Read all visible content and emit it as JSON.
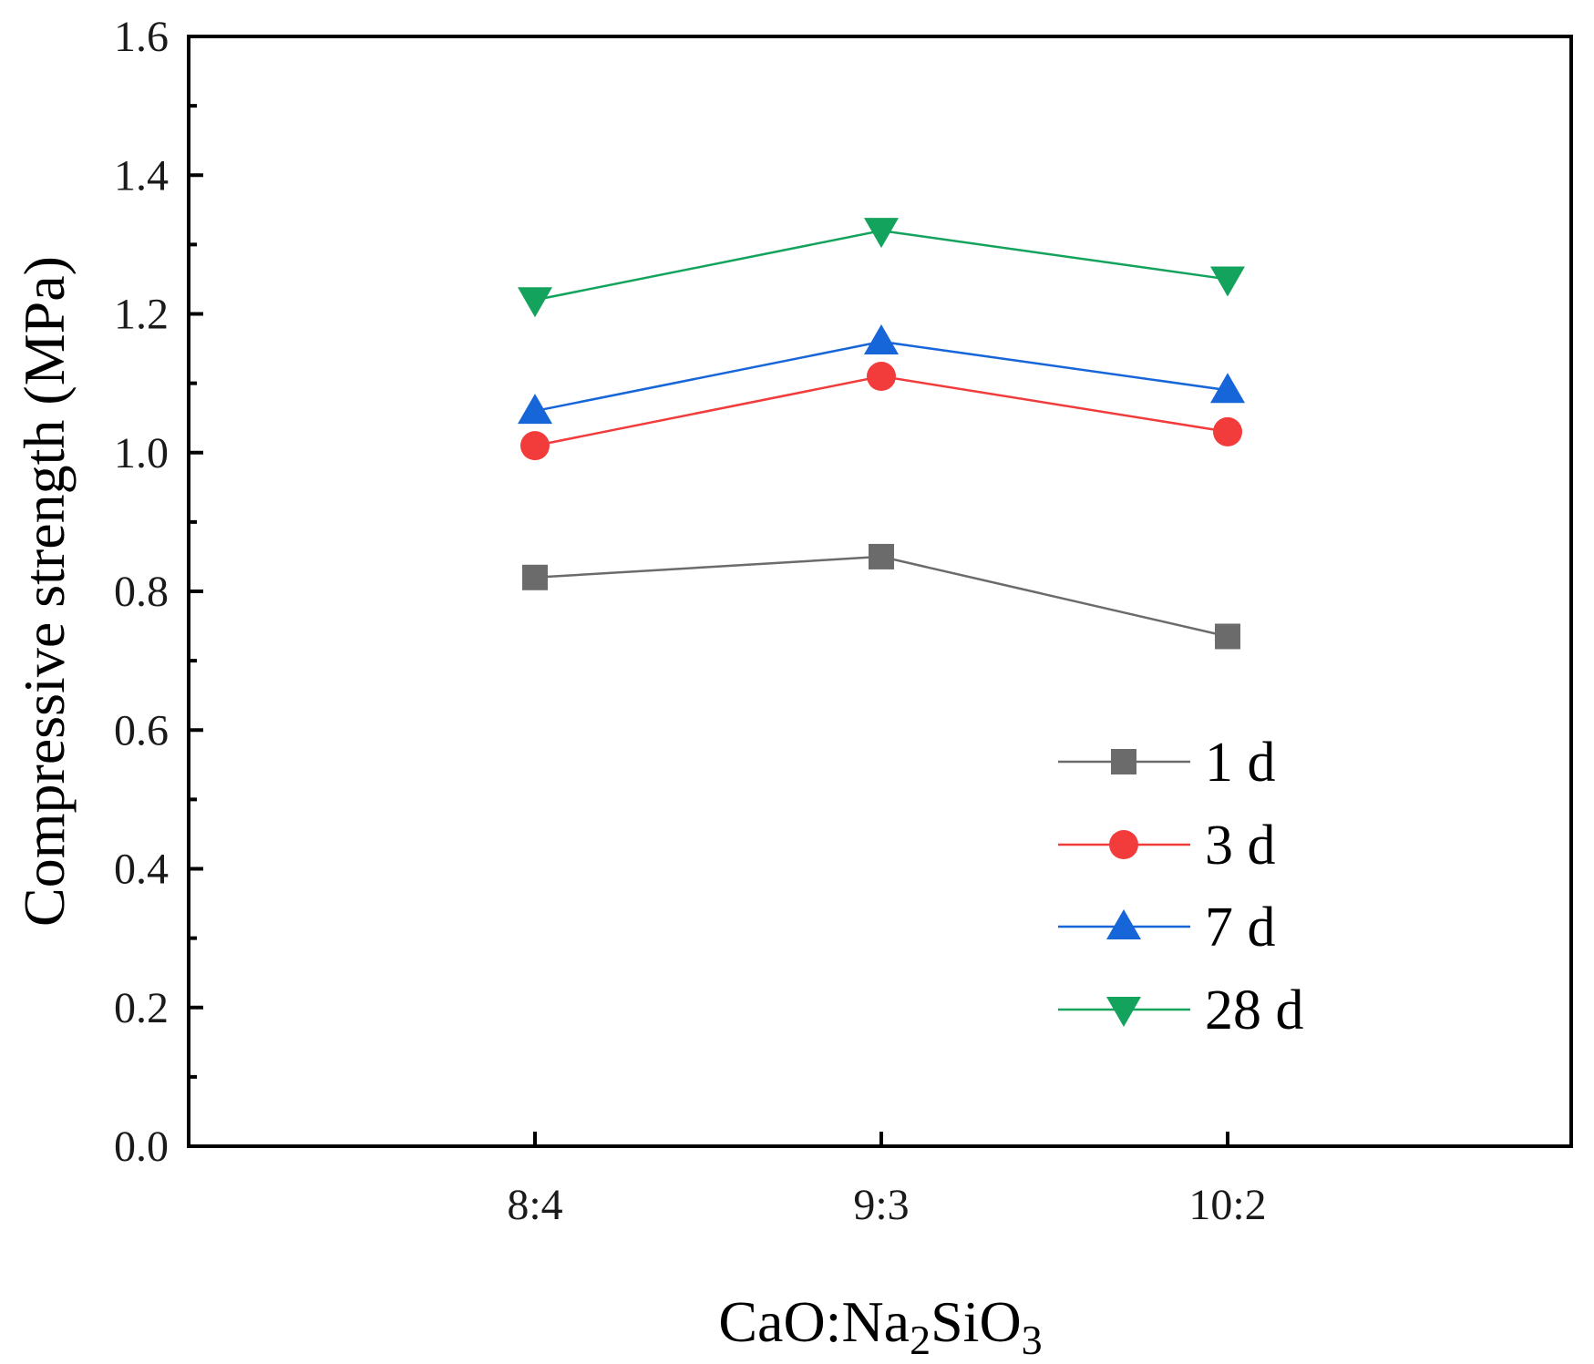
{
  "chart_data": {
    "type": "line",
    "title": "",
    "xlabel": {
      "base": "CaO:Na",
      "sub1": "2",
      "mid": "SiO",
      "sub2": "3"
    },
    "ylabel": "Compressive strength (MPa)",
    "categories": [
      "8:4",
      "9:3",
      "10:2"
    ],
    "ylim": [
      0.0,
      1.6
    ],
    "yticks": [
      "0.0",
      "0.2",
      "0.4",
      "0.6",
      "0.8",
      "1.0",
      "1.2",
      "1.4",
      "1.6"
    ],
    "grid": false,
    "legend_position": "bottom-right",
    "series": [
      {
        "name": "1 d",
        "marker": "square",
        "color": "#6b6b6b",
        "values": [
          0.82,
          0.85,
          0.735
        ]
      },
      {
        "name": "3 d",
        "marker": "circle",
        "color": "#f23b3b",
        "values": [
          1.01,
          1.11,
          1.03
        ]
      },
      {
        "name": "7 d",
        "marker": "triangle-up",
        "color": "#1666d9",
        "values": [
          1.06,
          1.16,
          1.09
        ]
      },
      {
        "name": "28 d",
        "marker": "triangle-down",
        "color": "#14a35c",
        "values": [
          1.22,
          1.32,
          1.25
        ]
      }
    ]
  }
}
